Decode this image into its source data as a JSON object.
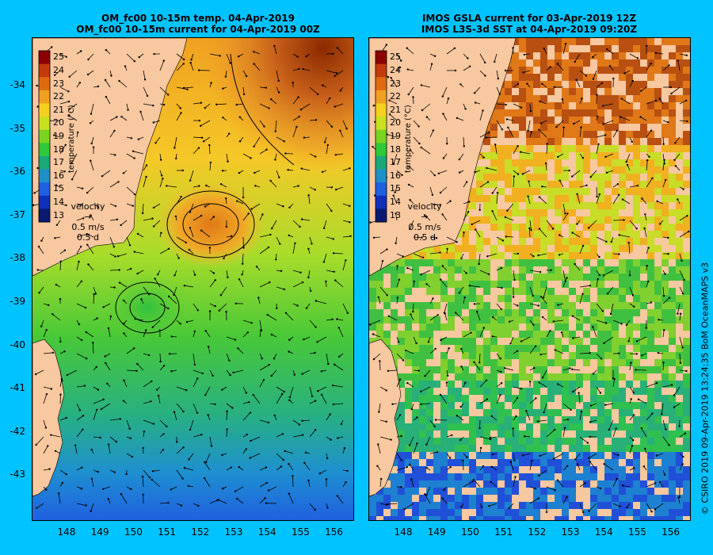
{
  "left_panel": {
    "title_line1": "OM_fc00 10-15m temp. 04-Apr-2019",
    "title_line2": "OM_fc00 10-15m current for 04-Apr-2019 00Z",
    "legend_velocity": "velocity",
    "legend_speed": "0.5 m/s",
    "legend_days": "0.5 d"
  },
  "right_panel": {
    "title_line1": "IMOS GSLA current for 03-Apr-2019 12Z",
    "title_line2": "IMOS L3S-3d SST at 04-Apr-2019 09:20Z",
    "legend_velocity": "velocity",
    "legend_speed": "0.5 m/s",
    "legend_days": "0.5 d"
  },
  "colorbar": {
    "title": "temperature (°C)",
    "ticks": [
      "25",
      "24",
      "23",
      "22",
      "21",
      "20",
      "19",
      "18",
      "17",
      "16",
      "15",
      "14",
      "13"
    ],
    "colors": [
      "#8b0000",
      "#c23b0f",
      "#e06a10",
      "#f0a020",
      "#f5d020",
      "#c8e020",
      "#78d41e",
      "#2ec83a",
      "#1aa878",
      "#1e90c8",
      "#2060e0",
      "#1030b8",
      "#0a1a70"
    ]
  },
  "latitudes": [
    "-34",
    "-35",
    "-36",
    "-37",
    "-38",
    "-39",
    "-40",
    "-41",
    "-42",
    "-43"
  ],
  "longitudes": [
    "148",
    "149",
    "150",
    "151",
    "152",
    "153",
    "154",
    "155",
    "156"
  ],
  "credit": "© CSIRO 2019   09-Apr-2019 13:24:35 BoM OceanMAPS v3",
  "colors": {
    "background": "#00c3ff",
    "land": "#f8c8a0"
  }
}
